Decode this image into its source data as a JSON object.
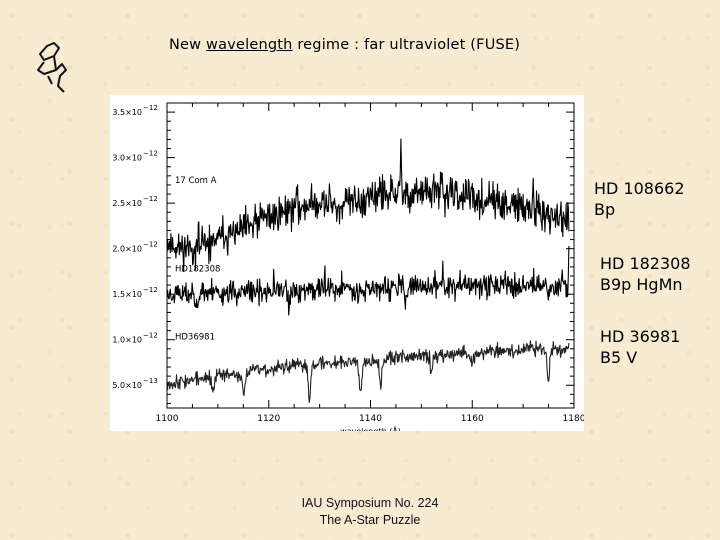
{
  "slide": {
    "title_prefix": "New ",
    "title_underlined": "wavelength",
    "title_suffix": " regime :  far ultraviolet (FUSE)",
    "footer_line1": "IAU Symposium No. 224",
    "footer_line2": "The A-Star Puzzle"
  },
  "annotations": [
    {
      "line1": "HD 108662",
      "line2": "Bp"
    },
    {
      "line1": "HD 182308",
      "line2": "B9p HgMn"
    },
    {
      "line1": "HD 36981",
      "line2": "B5 V"
    }
  ],
  "chart_data": {
    "type": "line",
    "xlabel": "wavelength (Å)",
    "ylabel": "",
    "xlim": [
      1100,
      1180
    ],
    "ylim": [
      2.5e-13,
      3.6e-12
    ],
    "x_ticks": [
      1100,
      1120,
      1140,
      1160,
      1180
    ],
    "y_ticks": [
      {
        "value": 5e-13,
        "mantissa": "5.0×10",
        "exp": "−13"
      },
      {
        "value": 1e-12,
        "mantissa": "1.0×10",
        "exp": "−12"
      },
      {
        "value": 1.5e-12,
        "mantissa": "1.5×10",
        "exp": "−12"
      },
      {
        "value": 2e-12,
        "mantissa": "2.0×10",
        "exp": "−12"
      },
      {
        "value": 2.5e-12,
        "mantissa": "2.5×10",
        "exp": "−12"
      },
      {
        "value": 3e-12,
        "mantissa": "3.0×10",
        "exp": "−12"
      },
      {
        "value": 3.5e-12,
        "mantissa": "3.5×10",
        "exp": "−12"
      }
    ],
    "grid": false,
    "series": [
      {
        "name": "17 Com A",
        "label_y": 2.72e-12,
        "color": "#000000",
        "seed": 11,
        "anchors": [
          [
            1100,
            2.07e-12
          ],
          [
            1102,
            2.02e-12
          ],
          [
            1105,
            2e-12
          ],
          [
            1110,
            2.1e-12
          ],
          [
            1115,
            2.2e-12
          ],
          [
            1120,
            2.35e-12
          ],
          [
            1125,
            2.45e-12
          ],
          [
            1130,
            2.5e-12
          ],
          [
            1135,
            2.5e-12
          ],
          [
            1140,
            2.55e-12
          ],
          [
            1145,
            2.6e-12
          ],
          [
            1150,
            2.62e-12
          ],
          [
            1155,
            2.6e-12
          ],
          [
            1160,
            2.55e-12
          ],
          [
            1165,
            2.5e-12
          ],
          [
            1170,
            2.45e-12
          ],
          [
            1175,
            2.35e-12
          ],
          [
            1179,
            2.3e-12
          ]
        ],
        "noise": 1.5e-13,
        "dips": [
          [
            1108,
            6e-14
          ],
          [
            1134,
            9e-14
          ],
          [
            1167,
            8e-14
          ]
        ],
        "spikes": [
          [
            1146,
            5e-13
          ],
          [
            1154,
            2.5e-13
          ],
          [
            1172,
            2.5e-13
          ]
        ]
      },
      {
        "name": "HD182308",
        "label_y": 1.75e-12,
        "color": "#000000",
        "seed": 23,
        "anchors": [
          [
            1100,
            1.5e-12
          ],
          [
            1110,
            1.52e-12
          ],
          [
            1120,
            1.52e-12
          ],
          [
            1130,
            1.56e-12
          ],
          [
            1140,
            1.56e-12
          ],
          [
            1150,
            1.58e-12
          ],
          [
            1160,
            1.6e-12
          ],
          [
            1170,
            1.6e-12
          ],
          [
            1179,
            1.6e-12
          ]
        ],
        "noise": 1e-13,
        "dips": [
          [
            1106,
            1.2e-13
          ],
          [
            1124,
            1.6e-13
          ],
          [
            1147,
            1.2e-13
          ],
          [
            1175,
            1.2e-13
          ]
        ],
        "spikes": [
          [
            1179,
            4.5e-13
          ],
          [
            1131,
            1.5e-13
          ]
        ]
      },
      {
        "name": "HD36981",
        "label_y": 1e-12,
        "color": "#222222",
        "seed": 37,
        "anchors": [
          [
            1100,
            5.2e-13
          ],
          [
            1110,
            6e-13
          ],
          [
            1120,
            6.8e-13
          ],
          [
            1130,
            7.4e-13
          ],
          [
            1140,
            7.8e-13
          ],
          [
            1150,
            8.2e-13
          ],
          [
            1160,
            8.6e-13
          ],
          [
            1170,
            8.9e-13
          ],
          [
            1179,
            9.1e-13
          ]
        ],
        "noise": 6e-14,
        "dips": [
          [
            1109,
            1.6e-13
          ],
          [
            1115,
            2.4e-13
          ],
          [
            1128,
            3.6e-13
          ],
          [
            1138,
            3.2e-13
          ],
          [
            1142,
            3e-13
          ],
          [
            1152,
            2e-13
          ],
          [
            1160,
            1.6e-13
          ],
          [
            1175,
            3.3e-13
          ]
        ],
        "spikes": []
      }
    ]
  }
}
